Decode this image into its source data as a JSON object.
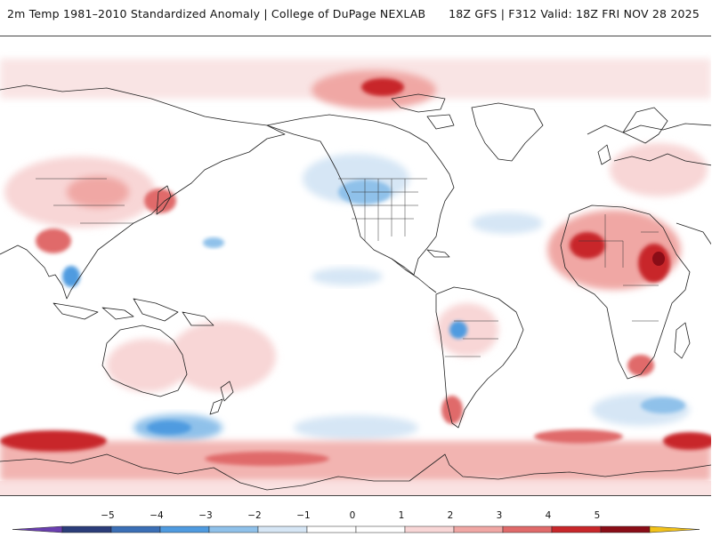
{
  "header": {
    "title": "2m Temp 1981–2010 Standardized Anomaly | College of DuPage NEXLAB",
    "run_info": "18Z GFS | F312 Valid: 18Z FRI NOV 28 2025"
  },
  "map": {
    "projection": "global equirectangular",
    "center_longitude": "180",
    "shows": [
      "continents",
      "country borders",
      "US state borders"
    ],
    "anomaly_regions": [
      {
        "name": "Greenland / Arctic Canada",
        "sign": "warm",
        "strength": 3
      },
      {
        "name": "Western Canada / US Northern Plains",
        "sign": "cold",
        "strength": -2
      },
      {
        "name": "Northern Africa",
        "sign": "warm",
        "strength": 3
      },
      {
        "name": "East Africa",
        "sign": "warm",
        "strength": 4
      },
      {
        "name": "Eastern Asia",
        "sign": "warm",
        "strength": 2
      },
      {
        "name": "Southern South America",
        "sign": "warm",
        "strength": 3
      },
      {
        "name": "Southern Ocean (Pacific sector)",
        "sign": "cold",
        "strength": -2
      },
      {
        "name": "Antarctic coast",
        "sign": "warm",
        "strength": 3
      }
    ]
  },
  "colorbar": {
    "ticks": [
      "−5",
      "−4",
      "−3",
      "−2",
      "−1",
      "0",
      "1",
      "2",
      "3",
      "4",
      "5"
    ],
    "segment_colors": [
      "#6a3fb0",
      "#2b3d7a",
      "#3b6fb6",
      "#4f9be0",
      "#8fc1ea",
      "#d6e6f5",
      "#ffffff",
      "#ffffff",
      "#f8d6d6",
      "#f0a7a4",
      "#e06a6a",
      "#c8262a",
      "#8a0d17",
      "#f2c21a"
    ]
  }
}
